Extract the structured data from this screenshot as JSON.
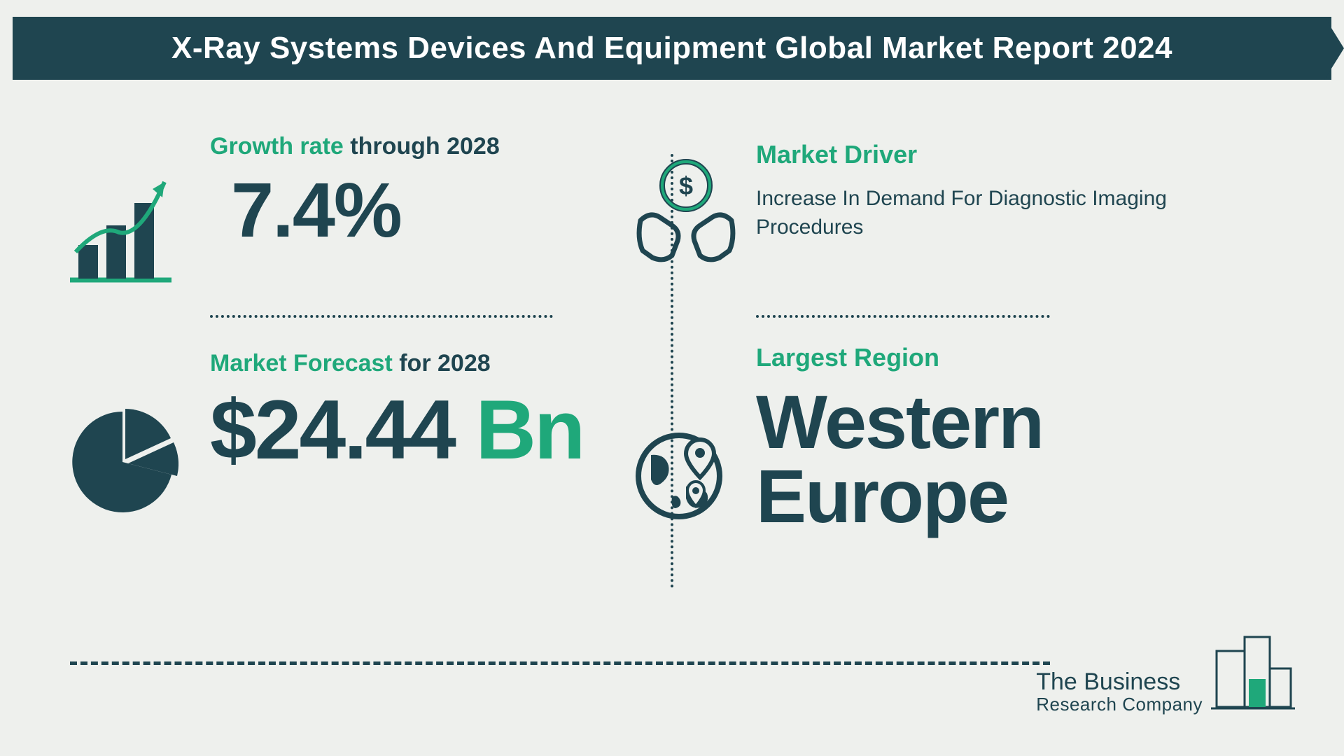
{
  "title": "X-Ray Systems Devices And Equipment Global Market Report 2024",
  "colors": {
    "background": "#eef0ed",
    "banner": "#1f4550",
    "title_text": "#ffffff",
    "accent": "#1fa87a",
    "dark": "#1f4550",
    "dotted": "#1f4550"
  },
  "typography": {
    "title_fontsize": 44,
    "label_fontsize": 34,
    "big_value_fontsize": 110,
    "forecast_value_fontsize": 120,
    "region_value_fontsize": 108,
    "body_fontsize": 30,
    "driver_label_fontsize": 36
  },
  "layout": {
    "aspect": "1920x1080",
    "columns": 2,
    "rows": 2,
    "vertical_divider": true,
    "horizontal_dotted_dividers": true
  },
  "growth": {
    "label_highlight": "Growth rate",
    "label_rest": " through 2028",
    "value": "7.4%",
    "icon": "bar-chart-arrow"
  },
  "forecast": {
    "label_highlight": "Market Forecast",
    "label_rest": " for 2028",
    "value_main": "$24.44",
    "value_unit": " Bn",
    "icon": "pie-chart"
  },
  "driver": {
    "label": "Market Driver",
    "text": "Increase In Demand For Diagnostic Imaging Procedures",
    "icon": "hands-coin"
  },
  "region": {
    "label": "Largest Region",
    "value": "Western Europe",
    "icon": "globe-pin"
  },
  "logo": {
    "line1": "The Business",
    "line2": "Research Company",
    "icon": "building-bars"
  }
}
